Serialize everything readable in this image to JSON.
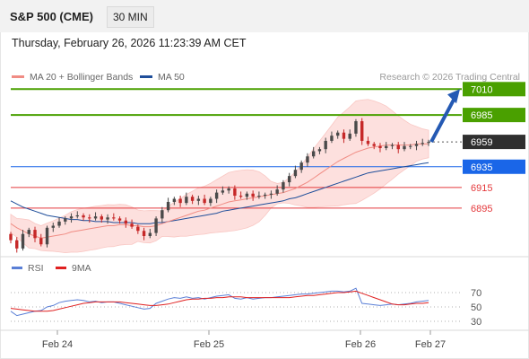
{
  "header": {
    "title": "S&P 500 (CME)",
    "interval": "30 MIN"
  },
  "timestamp": "Thursday, February 26, 2026 11:23:39 AM CET",
  "legend": [
    {
      "label": "MA 20 + Bollinger Bands",
      "color": "#f08c84"
    },
    {
      "label": "MA 50",
      "color": "#1f4e9a"
    }
  ],
  "credit": "Research © 2026 Trading Central",
  "colors": {
    "resistance": "#4aa000",
    "support": "#e4393c",
    "current": "#2f2f2f",
    "pivot": "#1a66e8",
    "arrow": "#2459b3",
    "rsi": "#5a7fd6",
    "rsi_ma": "#e02020"
  },
  "chart_data": [
    {
      "type": "line",
      "title": "",
      "x_ticks": [
        "Feb 24",
        "Feb 25",
        "Feb 26",
        "Feb 27"
      ],
      "levels": [
        {
          "value": 7010,
          "label": "7010",
          "kind": "resistance"
        },
        {
          "value": 6985,
          "label": "6985",
          "kind": "resistance"
        },
        {
          "value": 6959,
          "label": "6959",
          "kind": "current"
        },
        {
          "value": 6935,
          "label": "6935",
          "kind": "pivot"
        },
        {
          "value": 6915,
          "label": "6915",
          "kind": "support"
        },
        {
          "value": 6895,
          "label": "6895",
          "kind": "support"
        }
      ],
      "series": [
        {
          "name": "MA 20 + Bollinger Bands",
          "role": "ma20"
        },
        {
          "name": "MA 50",
          "role": "ma50"
        }
      ],
      "close": [
        6864,
        6856,
        6870,
        6874,
        6866,
        6860,
        6876,
        6878,
        6882,
        6885,
        6887,
        6888,
        6886,
        6885,
        6887,
        6884,
        6886,
        6885,
        6883,
        6880,
        6877,
        6873,
        6868,
        6871,
        6885,
        6893,
        6901,
        6904,
        6900,
        6906,
        6902,
        6904,
        6900,
        6904,
        6910,
        6912,
        6914,
        6907,
        6906,
        6909,
        6906,
        6907,
        6908,
        6909,
        6913,
        6920,
        6926,
        6932,
        6939,
        6945,
        6950,
        6952,
        6960,
        6965,
        6968,
        6962,
        6967,
        6979,
        6960,
        6957,
        6955,
        6953,
        6955,
        6956,
        6952,
        6955,
        6955,
        6957,
        6958,
        6959
      ],
      "ma20_values": [
        6880,
        6876,
        6873,
        6870,
        6868,
        6866,
        6867,
        6868,
        6869,
        6870,
        6872,
        6873,
        6874,
        6875,
        6876,
        6877,
        6878,
        6878,
        6879,
        6879,
        6878,
        6878,
        6877,
        6877,
        6878,
        6880,
        6882,
        6884,
        6886,
        6888,
        6890,
        6892,
        6893,
        6895,
        6897,
        6899,
        6901,
        6902,
        6903,
        6904,
        6905,
        6906,
        6907,
        6908,
        6909,
        6910,
        6912,
        6914,
        6917,
        6920,
        6924,
        6928,
        6932,
        6936,
        6940,
        6943,
        6946,
        6949,
        6951,
        6953,
        6954,
        6955,
        6956,
        6956,
        6956,
        6956,
        6956,
        6957,
        6957,
        6957
      ],
      "ma50_values": [
        6902,
        6899,
        6896,
        6894,
        6892,
        6890,
        6888,
        6887,
        6886,
        6885,
        6884,
        6884,
        6883,
        6883,
        6882,
        6882,
        6882,
        6881,
        6881,
        6881,
        6881,
        6880,
        6880,
        6880,
        6881,
        6881,
        6882,
        6883,
        6884,
        6885,
        6886,
        6887,
        6888,
        6889,
        6890,
        6892,
        6893,
        6894,
        6895,
        6896,
        6897,
        6898,
        6899,
        6900,
        6901,
        6902,
        6904,
        6905,
        6907,
        6909,
        6911,
        6913,
        6915,
        6917,
        6919,
        6921,
        6923,
        6925,
        6927,
        6929,
        6930,
        6931,
        6932,
        6933,
        6934,
        6935,
        6936,
        6937,
        6938,
        6939
      ],
      "forecast": {
        "from": 6959,
        "to": 7010
      },
      "ylim": [
        6855,
        7012
      ]
    },
    {
      "type": "line",
      "title": "",
      "series": [
        {
          "name": "RSI",
          "values": [
            44,
            38,
            40,
            42,
            44,
            45,
            50,
            52,
            56,
            58,
            59,
            60,
            59,
            57,
            58,
            56,
            57,
            57,
            55,
            53,
            51,
            49,
            47,
            48,
            55,
            58,
            61,
            63,
            62,
            64,
            62,
            63,
            61,
            63,
            65,
            66,
            67,
            62,
            61,
            63,
            61,
            62,
            63,
            63,
            64,
            65,
            66,
            67,
            68,
            68,
            69,
            70,
            71,
            72,
            72,
            71,
            72,
            76,
            55,
            54,
            53,
            52,
            53,
            54,
            53,
            54,
            55,
            57,
            58,
            59
          ]
        },
        {
          "name": "9MA",
          "values": [
            48,
            47,
            46,
            45,
            44,
            44,
            44,
            45,
            47,
            49,
            51,
            53,
            55,
            56,
            57,
            57,
            57,
            57,
            57,
            56,
            55,
            54,
            53,
            52,
            52,
            53,
            54,
            56,
            58,
            60,
            61,
            61,
            62,
            62,
            63,
            63,
            64,
            64,
            64,
            63,
            63,
            63,
            63,
            63,
            63,
            63,
            63,
            64,
            65,
            66,
            66,
            67,
            68,
            69,
            70,
            70,
            71,
            72,
            69,
            66,
            63,
            60,
            57,
            54,
            53,
            53,
            54,
            55,
            55,
            56
          ]
        }
      ],
      "y_ticks": [
        70,
        50,
        30
      ],
      "ylim": [
        20,
        80
      ]
    }
  ]
}
